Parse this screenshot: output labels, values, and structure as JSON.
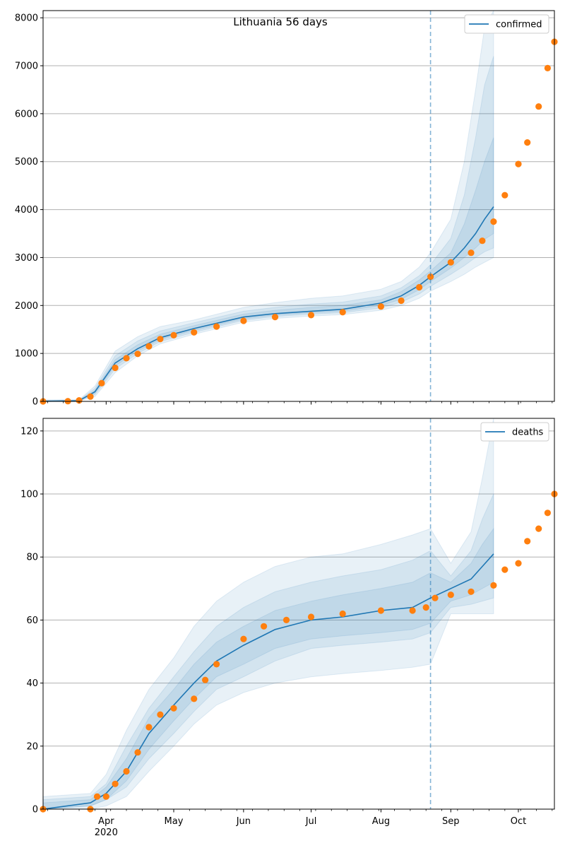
{
  "figure": {
    "title": "Lithuania 56 days"
  },
  "x_axis": {
    "ticks": [
      {
        "date": "2020-04-01",
        "label": "Apr",
        "sublabel": "2020"
      },
      {
        "date": "2020-05-01",
        "label": "May",
        "sublabel": ""
      },
      {
        "date": "2020-06-01",
        "label": "Jun",
        "sublabel": ""
      },
      {
        "date": "2020-07-01",
        "label": "Jul",
        "sublabel": ""
      },
      {
        "date": "2020-08-01",
        "label": "Aug",
        "sublabel": ""
      },
      {
        "date": "2020-09-01",
        "label": "Sep",
        "sublabel": ""
      },
      {
        "date": "2020-10-01",
        "label": "Oct",
        "sublabel": ""
      }
    ],
    "range": [
      "2020-03-04",
      "2020-10-17"
    ],
    "forecast_start": "2020-08-23",
    "prediction_end": "2020-09-20"
  },
  "colors": {
    "model": "#1f77b4",
    "observed": "#ff7f0e",
    "band": "#1f77b4"
  },
  "chart_data": [
    {
      "type": "line",
      "title": "Lithuania 56 days",
      "legend": [
        "confirmed"
      ],
      "legend_position": "top-right",
      "ylim": [
        0,
        8150
      ],
      "yticks": [
        0,
        1000,
        2000,
        3000,
        4000,
        5000,
        6000,
        7000,
        8000
      ],
      "grid": "horizontal",
      "model": {
        "name": "confirmed",
        "x": [
          "2020-03-04",
          "2020-03-20",
          "2020-03-27",
          "2020-04-05",
          "2020-04-15",
          "2020-04-25",
          "2020-05-10",
          "2020-06-01",
          "2020-06-15",
          "2020-07-01",
          "2020-07-15",
          "2020-08-01",
          "2020-08-10",
          "2020-08-18",
          "2020-08-23",
          "2020-09-01",
          "2020-09-07",
          "2020-09-12",
          "2020-09-16",
          "2020-09-20"
        ],
        "median": [
          0,
          15,
          200,
          800,
          1100,
          1330,
          1520,
          1760,
          1830,
          1880,
          1920,
          2050,
          2200,
          2420,
          2600,
          2900,
          3200,
          3500,
          3800,
          4060
        ],
        "bands": [
          {
            "lo": [
              0,
              10,
              100,
              600,
              950,
              1200,
              1400,
              1650,
              1730,
              1780,
              1810,
              1900,
              2000,
              2150,
              2300,
              2500,
              2650,
              2800,
              2900,
              3000
            ],
            "hi": [
              30,
              35,
              320,
              1050,
              1350,
              1560,
              1700,
              1960,
              2060,
              2150,
              2200,
              2340,
              2500,
              2800,
              3100,
              3800,
              5000,
              6500,
              7800,
              8150
            ]
          },
          {
            "lo": [
              0,
              12,
              140,
              680,
              1000,
              1250,
              1440,
              1690,
              1770,
              1820,
              1850,
              1950,
              2070,
              2240,
              2400,
              2650,
              2830,
              3000,
              3120,
              3200
            ],
            "hi": [
              25,
              28,
              270,
              950,
              1260,
              1470,
              1640,
              1880,
              1960,
              2030,
              2070,
              2200,
              2370,
              2620,
              2850,
              3400,
              4300,
              5500,
              6600,
              7200
            ]
          },
          {
            "lo": [
              0,
              13,
              170,
              740,
              1050,
              1290,
              1480,
              1720,
              1800,
              1850,
              1880,
              2000,
              2130,
              2330,
              2500,
              2780,
              3000,
              3200,
              3380,
              3500
            ],
            "hi": [
              20,
              22,
              230,
              870,
              1180,
              1400,
              1580,
              1820,
              1900,
              1960,
              2000,
              2120,
              2290,
              2530,
              2720,
              3100,
              3700,
              4400,
              5000,
              5500
            ]
          }
        ]
      },
      "observed": {
        "x": [
          "2020-03-04",
          "2020-03-15",
          "2020-03-20",
          "2020-03-25",
          "2020-03-30",
          "2020-04-05",
          "2020-04-10",
          "2020-04-15",
          "2020-04-20",
          "2020-04-25",
          "2020-05-01",
          "2020-05-10",
          "2020-05-20",
          "2020-06-01",
          "2020-06-15",
          "2020-07-01",
          "2020-07-15",
          "2020-08-01",
          "2020-08-10",
          "2020-08-18",
          "2020-08-23",
          "2020-09-01",
          "2020-09-10",
          "2020-09-15",
          "2020-09-20",
          "2020-09-25",
          "2020-10-01",
          "2020-10-05",
          "2020-10-10",
          "2020-10-14",
          "2020-10-17"
        ],
        "y": [
          0,
          5,
          20,
          100,
          380,
          700,
          900,
          990,
          1150,
          1300,
          1380,
          1440,
          1560,
          1680,
          1760,
          1800,
          1860,
          1980,
          2100,
          2380,
          2600,
          2900,
          3100,
          3350,
          3750,
          4300,
          4950,
          5400,
          6150,
          6950,
          7500
        ]
      }
    },
    {
      "type": "line",
      "legend": [
        "deaths"
      ],
      "legend_position": "top-right",
      "ylim": [
        0,
        124
      ],
      "yticks": [
        0,
        20,
        40,
        60,
        80,
        100,
        120
      ],
      "grid": "horizontal",
      "model": {
        "name": "deaths",
        "x": [
          "2020-03-04",
          "2020-03-25",
          "2020-04-01",
          "2020-04-10",
          "2020-04-20",
          "2020-05-01",
          "2020-05-10",
          "2020-05-20",
          "2020-06-01",
          "2020-06-15",
          "2020-07-01",
          "2020-07-15",
          "2020-08-01",
          "2020-08-15",
          "2020-08-23",
          "2020-09-01",
          "2020-09-10",
          "2020-09-15",
          "2020-09-20"
        ],
        "median": [
          0,
          2,
          5,
          12,
          24,
          33,
          40,
          47,
          52,
          57,
          60,
          61,
          63,
          64,
          67,
          70,
          73,
          77,
          81
        ],
        "bands": [
          {
            "lo": [
              0,
              0,
              1,
              4,
              12,
              20,
              27,
              33,
              37,
              40,
              42,
              43,
              44,
              45,
              46,
              62,
              62,
              62,
              62
            ],
            "hi": [
              4,
              5,
              11,
              25,
              38,
              48,
              58,
              66,
              72,
              77,
              80,
              81,
              84,
              87,
              89,
              78,
              88,
              105,
              124
            ]
          },
          {
            "lo": [
              0,
              1,
              3,
              7,
              16,
              24,
              31,
              38,
              42,
              47,
              51,
              52,
              53,
              54,
              56,
              64,
              65,
              66,
              67
            ],
            "hi": [
              3,
              4,
              8,
              20,
              32,
              42,
              50,
              58,
              64,
              69,
              72,
              74,
              76,
              79,
              82,
              74,
              82,
              92,
              100
            ]
          },
          {
            "lo": [
              0,
              1,
              3,
              9,
              19,
              28,
              35,
              42,
              46,
              51,
              54,
              55,
              56,
              57,
              59,
              66,
              68,
              70,
              72
            ],
            "hi": [
              2,
              3,
              7,
              16,
              29,
              38,
              46,
              53,
              58,
              63,
              66,
              68,
              70,
              72,
              75,
              72,
              78,
              84,
              89
            ]
          }
        ]
      },
      "observed": {
        "x": [
          "2020-03-04",
          "2020-03-25",
          "2020-03-28",
          "2020-04-01",
          "2020-04-05",
          "2020-04-10",
          "2020-04-15",
          "2020-04-20",
          "2020-04-25",
          "2020-05-01",
          "2020-05-10",
          "2020-05-15",
          "2020-05-20",
          "2020-06-01",
          "2020-06-10",
          "2020-06-20",
          "2020-07-01",
          "2020-07-15",
          "2020-08-01",
          "2020-08-15",
          "2020-08-21",
          "2020-08-25",
          "2020-09-01",
          "2020-09-10",
          "2020-09-20",
          "2020-09-25",
          "2020-10-01",
          "2020-10-05",
          "2020-10-10",
          "2020-10-14",
          "2020-10-17"
        ],
        "y": [
          0,
          0,
          4,
          4,
          8,
          12,
          18,
          26,
          30,
          32,
          35,
          41,
          46,
          54,
          58,
          60,
          61,
          62,
          63,
          63,
          64,
          67,
          68,
          69,
          71,
          76,
          78,
          85,
          89,
          94,
          100
        ]
      }
    }
  ]
}
